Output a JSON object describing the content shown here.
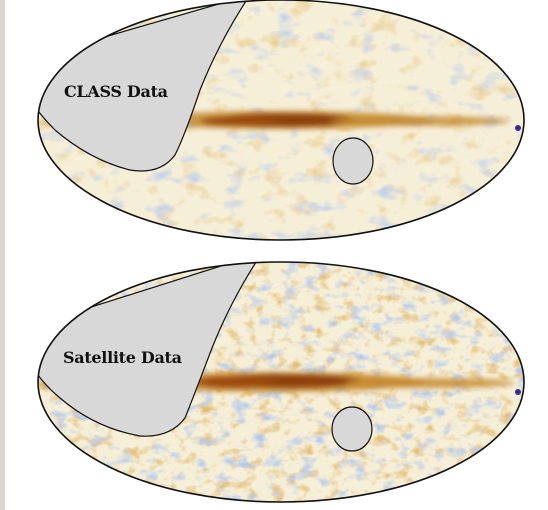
{
  "maps": [
    {
      "label": "CLASS Data"
    },
    {
      "label": "Satellite Data"
    }
  ],
  "colors": {
    "background": "#ffffff",
    "ellipse_outline": "#111111",
    "masked_region": "#d8d8d8",
    "base_tone": "#f6efd8",
    "warm_tone": "#c6892e",
    "hot_tone": "#8f3f07",
    "cool_tone": "#7a95d6",
    "point_source": "#3b2a8a"
  },
  "icons": {
    "masked_region": "gray-mask-shape",
    "masked_hole": "gray-ellipse-hole"
  }
}
